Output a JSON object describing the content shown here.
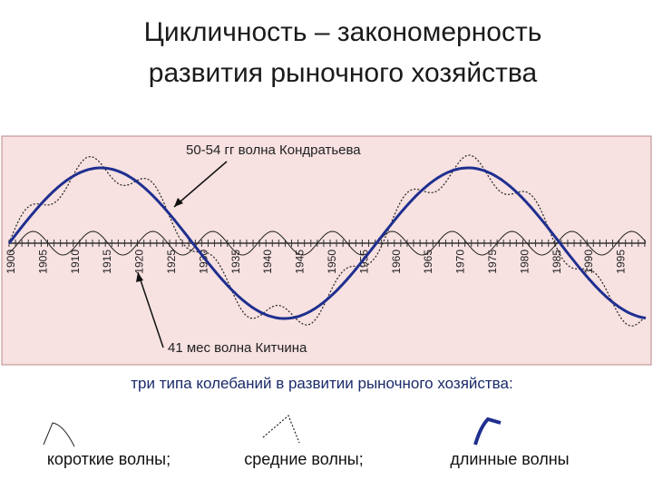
{
  "title": {
    "line1": "Цикличность – закономерность",
    "line2": "развития рыночного хозяйства"
  },
  "diagram": {
    "kondratiev_label": "50-54 гг волна Кондратьева",
    "kitchin_label": "41 мес волна Китчина",
    "years": [
      "1900",
      "1905",
      "1910",
      "1915",
      "1920",
      "1925",
      "1930",
      "1935",
      "1940",
      "1945",
      "1950",
      "1955",
      "1960",
      "1965",
      "1970",
      "1975",
      "1980",
      "1985",
      "1990",
      "1995"
    ]
  },
  "caption": "три типа колебаний в развитии рыночного хозяйства:",
  "legend": [
    "короткие волны;",
    "средние волны;",
    "длинные волны"
  ]
}
